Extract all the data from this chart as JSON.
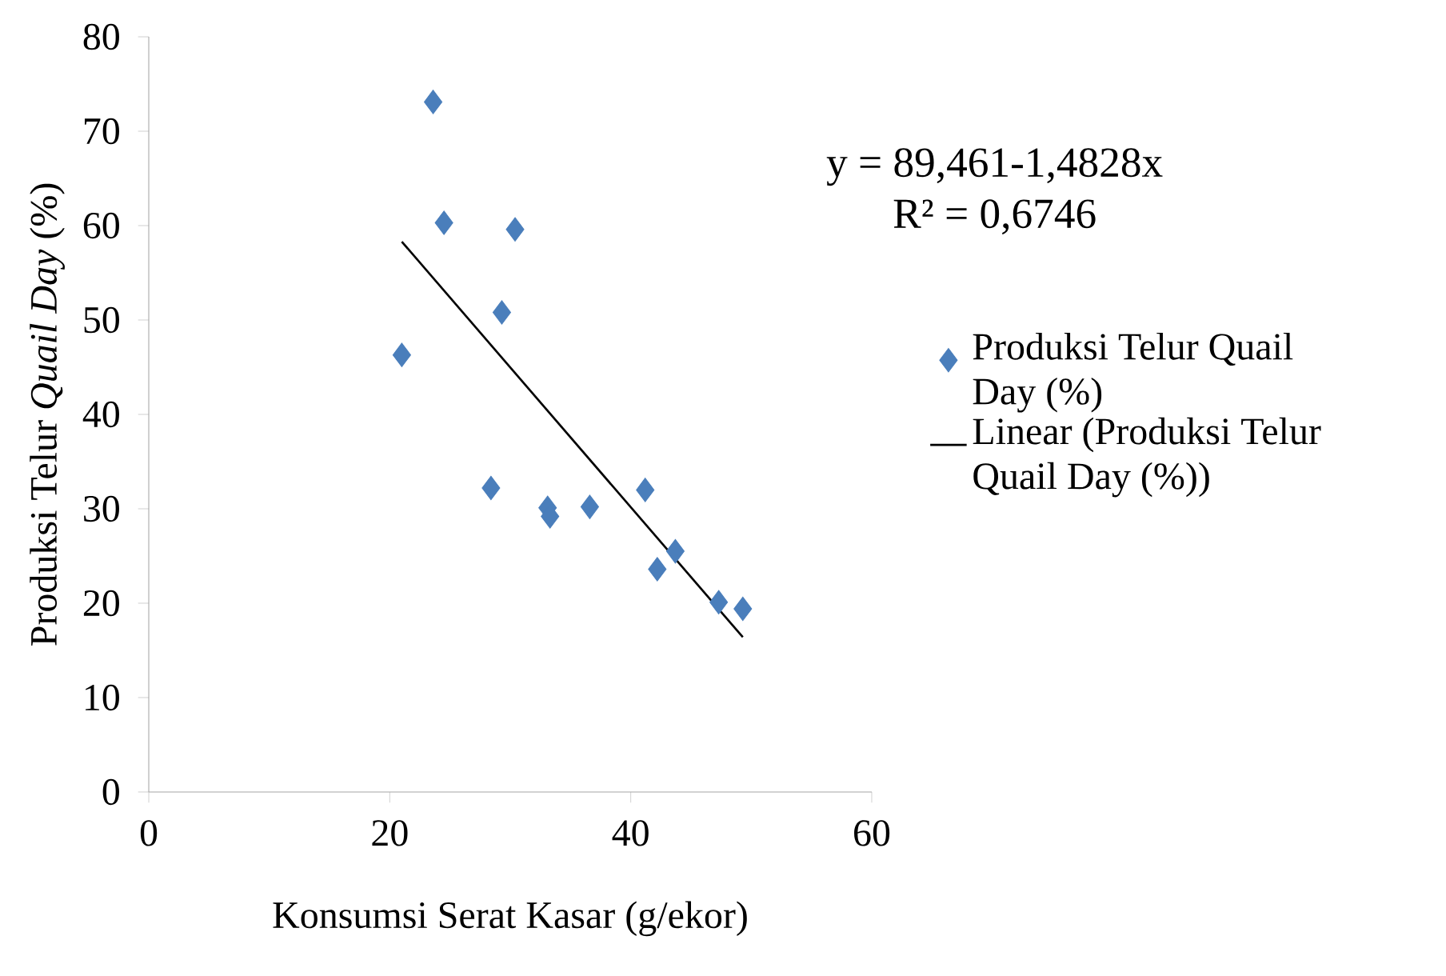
{
  "chart_data": {
    "type": "scatter",
    "xlabel": "Konsumsi Serat Kasar (g/ekor)",
    "ylabel": "Produksi Telur *Quail Day* (%)",
    "xlim": [
      0,
      60
    ],
    "ylim": [
      0,
      80
    ],
    "xticks": [
      0,
      20,
      40,
      60
    ],
    "yticks": [
      0,
      10,
      20,
      30,
      40,
      50,
      60,
      70,
      80
    ],
    "marker": "diamond",
    "legend": "right",
    "series": [
      {
        "name": "Produksi Telur Quail Day (%)",
        "color": "#4a7ebb",
        "x": [
          23.6,
          24.5,
          30.4,
          29.3,
          21.0,
          28.4,
          33.1,
          33.3,
          36.6,
          41.2,
          43.7,
          42.2,
          47.3,
          49.3
        ],
        "values": [
          73.1,
          60.3,
          59.6,
          50.8,
          46.3,
          32.2,
          30.1,
          29.2,
          30.2,
          32.0,
          25.5,
          23.6,
          20.1,
          19.4
        ]
      },
      {
        "name": "Linear (Produksi Telur Quail Day (%))",
        "type": "line",
        "marker": "none",
        "color": "#000000",
        "x": [
          21.0,
          49.3
        ],
        "values": [
          58.3,
          16.4
        ]
      }
    ],
    "annotations": [
      "y = 89,461-1,4828x",
      "R² = 0,6746"
    ]
  }
}
